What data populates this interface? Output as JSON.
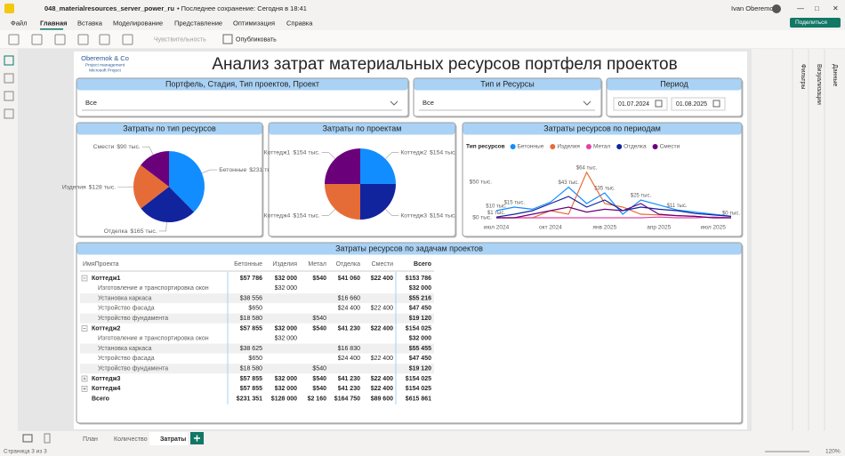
{
  "window": {
    "file": "048_materialresources_server_power_ru",
    "saved": "• Последнее сохранение: Сегодня в 18:41",
    "user": "Ivan Oberemok",
    "share": "Поделиться"
  },
  "menu": [
    "Файл",
    "Главная",
    "Вставка",
    "Моделирование",
    "Представление",
    "Оптимизация",
    "Справка"
  ],
  "toolbar": [
    "Чувствительность",
    "Опубликовать"
  ],
  "panes": [
    "Фильтры",
    "Визуализации",
    "Данные"
  ],
  "report": {
    "title": "Анализ затрат материальных ресурсов портфеля проектов",
    "logo": [
      "Oberemok & Co",
      "Project management",
      "Microsoft Project"
    ]
  },
  "slicers": [
    {
      "title": "Портфель, Стадия, Тип проектов, Проект",
      "value": "Все"
    },
    {
      "title": "Тип и Ресурсы",
      "value": "Все"
    }
  ],
  "period": {
    "title": "Период",
    "from": "01.07.2024",
    "to": "01.08.2025"
  },
  "chart_data": [
    {
      "type": "pie",
      "title": "Затраты по тип ресурсов",
      "categories": [
        "Бетонные",
        "Отделка",
        "Изделия",
        "Смести"
      ],
      "values": [
        231,
        165,
        128,
        90
      ],
      "value_labels": [
        "$231 тыс.",
        "$165 тыс.",
        "$128 тыс.",
        "$90 тыс."
      ],
      "colors": [
        "#118DFF",
        "#12239E",
        "#E66C37",
        "#6B007B"
      ]
    },
    {
      "type": "pie",
      "title": "Затраты по проектам",
      "categories": [
        "Коттедж2",
        "Коттедж3",
        "Коттедж4",
        "Коттедж1"
      ],
      "values": [
        154,
        154,
        154,
        154
      ],
      "value_labels": [
        "$154 тыс.",
        "$154 тыс.",
        "$154 тыс.",
        "$154 тыс."
      ],
      "colors": [
        "#118DFF",
        "#12239E",
        "#E66C37",
        "#6B007B"
      ]
    },
    {
      "type": "line",
      "title": "Затраты ресурсов по периодам",
      "legend_title": "Тип ресурсов",
      "grid": false,
      "categories": [
        "июл 2024",
        null,
        null,
        "окт 2024",
        null,
        null,
        "янв 2025",
        null,
        null,
        "апр 2025",
        null,
        null,
        "июл 2025",
        null
      ],
      "ylim": [
        0,
        70
      ],
      "yticks": [
        {
          "value": 0,
          "label": "$0 тыс."
        },
        {
          "value": 50,
          "label": "$50 тыс."
        }
      ],
      "series": [
        {
          "name": "Бетонные",
          "color": "#118DFF",
          "values": [
            10,
            15,
            12,
            22,
            43,
            20,
            35,
            5,
            25,
            18,
            11,
            8,
            5,
            2
          ],
          "value_labels": [
            "$10 тыс.",
            "$15 тыс.",
            null,
            null,
            "$43 тыс.",
            null,
            "$35 тыс.",
            null,
            "$25 тыс.",
            null,
            "$11 тыс.",
            null,
            null,
            null
          ]
        },
        {
          "name": "Изделия",
          "color": "#E66C37",
          "values": [
            0,
            0,
            0,
            10,
            5,
            64,
            20,
            15,
            5,
            4,
            3,
            2,
            0,
            0
          ],
          "value_labels": [
            null,
            null,
            null,
            null,
            null,
            "$64 тыс.",
            null,
            null,
            null,
            null,
            null,
            null,
            null,
            null
          ]
        },
        {
          "name": "Метал",
          "color": "#E044A7",
          "values": [
            0,
            0,
            0,
            0,
            0,
            0,
            0,
            0,
            0,
            1,
            0,
            0,
            1,
            0
          ],
          "value_labels": [
            null,
            null,
            null,
            null,
            null,
            null,
            null,
            null,
            null,
            null,
            null,
            null,
            null,
            "$0 тыс."
          ]
        },
        {
          "name": "Отделка",
          "color": "#12239E",
          "values": [
            1,
            5,
            10,
            20,
            30,
            15,
            25,
            10,
            15,
            12,
            10,
            6,
            4,
            2
          ],
          "value_labels": [
            "$1 тыс.",
            null,
            null,
            null,
            null,
            null,
            null,
            null,
            null,
            null,
            null,
            null,
            null,
            null
          ]
        },
        {
          "name": "Смести",
          "color": "#6B007B",
          "values": [
            0,
            0,
            5,
            10,
            15,
            8,
            12,
            10,
            20,
            5,
            3,
            2,
            0,
            0
          ],
          "value_labels": [
            null,
            null,
            null,
            null,
            null,
            null,
            null,
            null,
            null,
            null,
            null,
            null,
            null,
            null
          ]
        }
      ]
    }
  ],
  "table": {
    "title": "Затраты ресурсов по задачам проектов",
    "columns": [
      "ИмяПроекта",
      "Бетонные",
      "Изделия",
      "Метал",
      "Отделка",
      "Смести",
      "Всего"
    ],
    "groups": [
      {
        "name": "Коттедж1",
        "values": [
          "$57 786",
          "$32 000",
          "$540",
          "$41 060",
          "$22 400",
          "$153 786"
        ],
        "tasks": [
          {
            "name": "Изготовление и транспортировка окон",
            "values": [
              null,
              "$32 000",
              null,
              null,
              null,
              "$32 000"
            ]
          },
          {
            "name": "Установка каркаса",
            "values": [
              "$38 556",
              null,
              null,
              "$16 660",
              null,
              "$55 216"
            ]
          },
          {
            "name": "Устройство фасада",
            "values": [
              "$650",
              null,
              null,
              "$24 400",
              "$22 400",
              "$47 450"
            ]
          },
          {
            "name": "Устройство фундамента",
            "values": [
              "$18 580",
              null,
              "$540",
              null,
              null,
              "$19 120"
            ]
          }
        ]
      },
      {
        "name": "Коттедж2",
        "values": [
          "$57 855",
          "$32 000",
          "$540",
          "$41 230",
          "$22 400",
          "$154 025"
        ],
        "tasks": [
          {
            "name": "Изготовление и транспортировка окон",
            "values": [
              null,
              "$32 000",
              null,
              null,
              null,
              "$32 000"
            ]
          },
          {
            "name": "Установка каркаса",
            "values": [
              "$38 625",
              null,
              null,
              "$16 830",
              null,
              "$55 455"
            ]
          },
          {
            "name": "Устройство фасада",
            "values": [
              "$650",
              null,
              null,
              "$24 400",
              "$22 400",
              "$47 450"
            ]
          },
          {
            "name": "Устройство фундамента",
            "values": [
              "$18 580",
              null,
              "$540",
              null,
              null,
              "$19 120"
            ]
          }
        ]
      },
      {
        "name": "Коттедж3",
        "values": [
          "$57 855",
          "$32 000",
          "$540",
          "$41 230",
          "$22 400",
          "$154 025"
        ],
        "tasks": []
      },
      {
        "name": "Коттедж4",
        "values": [
          "$57 855",
          "$32 000",
          "$540",
          "$41 230",
          "$22 400",
          "$154 025"
        ],
        "tasks": []
      }
    ],
    "total": {
      "name": "Всего",
      "values": [
        "$231 351",
        "$128 000",
        "$2 160",
        "$164 750",
        "$89 600",
        "$615 861"
      ]
    }
  },
  "pages": [
    "План",
    "Количество",
    "Затраты"
  ],
  "status": {
    "page": "Страница 3 из 3",
    "zoom": "120%"
  }
}
